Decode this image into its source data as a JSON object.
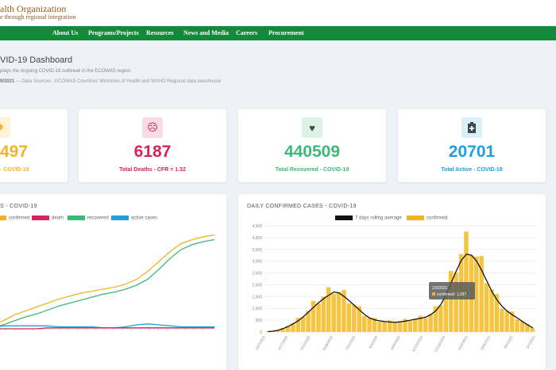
{
  "brand": {
    "title": "alth Organization",
    "subtitle": "e through regional integration"
  },
  "nav": {
    "items": [
      {
        "label": "About Us"
      },
      {
        "label": "Programs/Projects"
      },
      {
        "label": "Resources"
      },
      {
        "label": "News and Media"
      },
      {
        "label": "Careers"
      },
      {
        "label": "Procurement"
      }
    ]
  },
  "page": {
    "title": "VID-19 Dashboard",
    "description": "plays the ongoing COVID-19 outbreak in the ECOWAS region.",
    "date": "9/2021",
    "sources": "— Data Sources : ECOWAS Countries' Ministries of Health and WAHO Regional data warehouse"
  },
  "cards": [
    {
      "value": "497",
      "label": "- COVID-19",
      "color": "#f0b429",
      "icon": "virus-icon",
      "icon_bg": "#fdf3d6"
    },
    {
      "value": "6187",
      "label": "Total Deaths - CFR = 1.32",
      "color": "#d6245a",
      "icon": "skull-icon",
      "icon_bg": "#f9dbe4"
    },
    {
      "value": "440509",
      "label": "Total Recovered - COVID-19",
      "color": "#3cb878",
      "icon": "heart-icon",
      "icon_bg": "#dcf2e6"
    },
    {
      "value": "20701",
      "label": "Total Active - COVID-19",
      "color": "#1ea0dc",
      "icon": "hospital-icon",
      "icon_bg": "#d9effa"
    }
  ],
  "left_panel": {
    "title": "S - COVID-19",
    "legend": [
      {
        "name": "confirmed",
        "color": "#f0b429"
      },
      {
        "name": "death",
        "color": "#d6245a"
      },
      {
        "name": "recovered",
        "color": "#3cb878"
      },
      {
        "name": "active cases",
        "color": "#1ea0dc"
      }
    ]
  },
  "right_panel": {
    "title": "DAILY CONFIRMED CASES - COVID-19",
    "legend": [
      {
        "name": "7 days rolling average",
        "color": "#111111"
      },
      {
        "name": "confirmed",
        "color": "#f0b429"
      }
    ],
    "tooltip": {
      "date": "2/3/2021",
      "line": "confirmed: 1,397"
    }
  },
  "chart_data": [
    {
      "type": "line",
      "title": "S - COVID-19",
      "x": [
        0,
        1,
        2,
        3,
        4,
        5,
        6,
        7,
        8,
        9,
        10,
        11,
        12,
        13,
        14,
        15,
        16,
        17,
        18,
        19,
        20
      ],
      "series": [
        {
          "name": "confirmed",
          "values": [
            3,
            8,
            14,
            18,
            22,
            26,
            30,
            33,
            36,
            38,
            40,
            42,
            45,
            50,
            58,
            68,
            78,
            86,
            90,
            93,
            95
          ]
        },
        {
          "name": "recovered",
          "values": [
            1,
            4,
            8,
            12,
            15,
            19,
            23,
            26,
            29,
            32,
            35,
            37,
            40,
            44,
            50,
            60,
            71,
            80,
            85,
            88,
            90
          ]
        },
        {
          "name": "active cases",
          "values": [
            1,
            3,
            3,
            3,
            3,
            3,
            2,
            2,
            2,
            2,
            1,
            1,
            2,
            4,
            5,
            4,
            3,
            2,
            2,
            2,
            2
          ]
        },
        {
          "name": "death",
          "values": [
            0,
            0,
            0,
            0,
            0,
            1,
            1,
            1,
            1,
            1,
            1,
            1,
            1,
            1,
            1,
            1,
            1,
            1,
            1,
            1,
            1
          ]
        }
      ]
    },
    {
      "type": "bar",
      "title": "DAILY CONFIRMED CASES - COVID-19",
      "y_ticks": [
        "4,500",
        "4,000",
        "3,500",
        "3,000",
        "2,500",
        "2,000",
        "1,500",
        "1,000",
        "500",
        "0"
      ],
      "ylim": [
        0,
        4500
      ],
      "x_labels": [
        "2/27/2020",
        "4/17/2020",
        "5/22/2020",
        "6/26/2020",
        "7/31/2020",
        "9/4/2020",
        "10/9/2020",
        "11/13/2020",
        "12/18/2020",
        "1/22/2021",
        "2/26/2021",
        "4/2/2021",
        "5/7/2021"
      ],
      "confirmed": [
        20,
        40,
        80,
        150,
        260,
        380,
        520,
        700,
        900,
        1150,
        1350,
        1500,
        1650,
        1800,
        1700,
        1550,
        1350,
        1150,
        950,
        750,
        600,
        520,
        480,
        450,
        430,
        420,
        440,
        480,
        520,
        560,
        600,
        650,
        760,
        950,
        1250,
        1700,
        2250,
        2800,
        3300,
        3700,
        3600,
        3200,
        2800,
        2300,
        1800,
        1400,
        1100,
        900,
        750,
        600,
        450,
        300,
        180
      ],
      "rolling_avg": [
        15,
        35,
        70,
        140,
        240,
        350,
        480,
        650,
        850,
        1050,
        1250,
        1420,
        1560,
        1700,
        1650,
        1500,
        1320,
        1120,
        930,
        740,
        590,
        510,
        470,
        440,
        420,
        410,
        430,
        460,
        500,
        540,
        580,
        630,
        740,
        900,
        1180,
        1600,
        2100,
        2600,
        3050,
        3300,
        3250,
        3000,
        2600,
        2150,
        1700,
        1350,
        1080,
        880,
        730,
        590,
        440,
        300,
        170
      ]
    }
  ]
}
